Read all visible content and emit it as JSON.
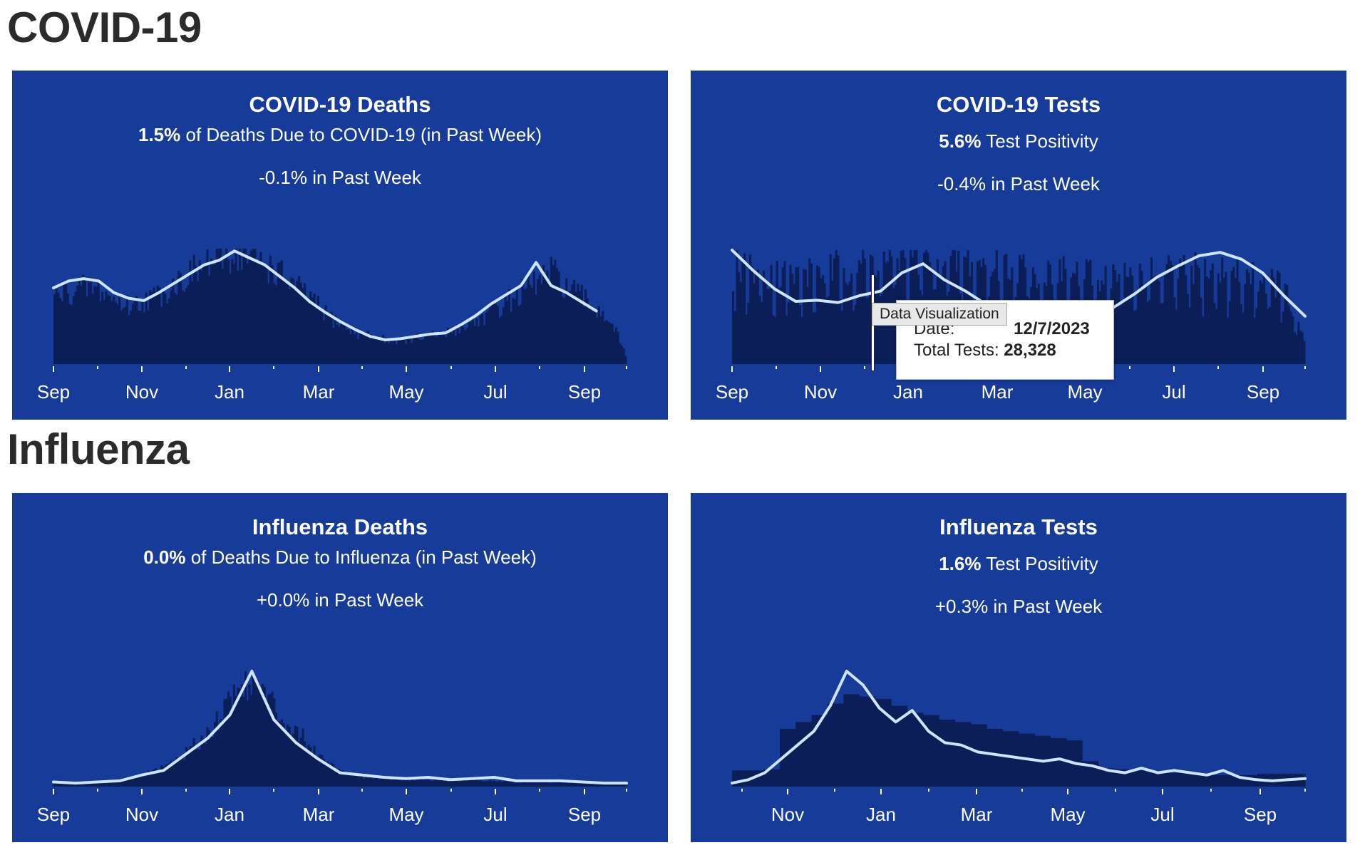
{
  "sections": {
    "covid": "COVID-19",
    "influenza": "Influenza"
  },
  "colors": {
    "panel_bg": "#173b99",
    "bar": "#0b1e57",
    "line": "#cfe4ff",
    "text": "#ffffff",
    "heading": "#2b2b2b"
  },
  "panels": {
    "covid_deaths": {
      "title": "COVID-19 Deaths",
      "metric_value": "1.5%",
      "metric_text": " of Deaths Due to COVID-19 (in Past Week)",
      "change": "-0.1% in Past Week"
    },
    "covid_tests": {
      "title": "COVID-19 Tests",
      "metric_value": "5.6%",
      "metric_text": " Test Positivity",
      "change": "-0.4% in Past Week",
      "tooltip": {
        "tag": "Data Visualization",
        "date_label": "Date:",
        "date_value": "12/7/2023",
        "tests_label": "Total Tests:",
        "tests_value": "28,328"
      }
    },
    "influenza_deaths": {
      "title": "Influenza Deaths",
      "metric_value": "0.0%",
      "metric_text": " of Deaths Due to Influenza (in Past Week)",
      "change": "+0.0% in Past Week"
    },
    "influenza_tests": {
      "title": "Influenza Tests",
      "metric_value": "1.6%",
      "metric_text": " Test Positivity",
      "change": "+0.3% in Past Week"
    }
  },
  "chart_data": [
    {
      "id": "covid_deaths",
      "type": "bar+line",
      "title": "COVID-19 Deaths",
      "x_ticks": [
        "Sep",
        "Nov",
        "Jan",
        "Mar",
        "May",
        "Jul",
        "Sep"
      ],
      "x_range_months": [
        0,
        13
      ],
      "y_range": [
        0,
        100
      ],
      "grid": false,
      "bar_daily": [
        [
          0,
          60
        ],
        [
          0.5,
          64
        ],
        [
          1,
          68
        ],
        [
          1.5,
          66
        ],
        [
          2,
          57
        ],
        [
          2.5,
          52
        ],
        [
          3,
          57
        ],
        [
          3.5,
          62
        ],
        [
          4,
          72
        ],
        [
          4.5,
          80
        ],
        [
          5,
          88
        ],
        [
          5.5,
          95
        ],
        [
          6,
          100
        ],
        [
          6.5,
          96
        ],
        [
          7,
          90
        ],
        [
          7.5,
          80
        ],
        [
          8,
          70
        ],
        [
          8.5,
          58
        ],
        [
          9,
          45
        ],
        [
          9.5,
          36
        ],
        [
          10,
          28
        ],
        [
          10.5,
          25
        ],
        [
          11,
          22
        ],
        [
          11.5,
          21
        ],
        [
          12,
          23
        ],
        [
          12.5,
          25
        ],
        [
          13,
          27
        ],
        [
          13.5,
          32
        ],
        [
          14,
          38
        ],
        [
          14.5,
          45
        ],
        [
          15,
          55
        ],
        [
          15.5,
          63
        ],
        [
          16,
          72
        ],
        [
          16.5,
          82
        ],
        [
          17,
          70
        ],
        [
          17.5,
          60
        ],
        [
          18,
          50
        ],
        [
          18.5,
          40
        ],
        [
          19,
          8
        ]
      ],
      "line_7day_avg": [
        [
          0,
          66
        ],
        [
          0.5,
          72
        ],
        [
          1,
          74
        ],
        [
          1.5,
          72
        ],
        [
          2,
          62
        ],
        [
          2.5,
          57
        ],
        [
          3,
          55
        ],
        [
          3.5,
          62
        ],
        [
          4,
          70
        ],
        [
          4.5,
          78
        ],
        [
          5,
          86
        ],
        [
          5.5,
          90
        ],
        [
          6,
          98
        ],
        [
          6.5,
          92
        ],
        [
          7,
          86
        ],
        [
          7.5,
          76
        ],
        [
          8,
          66
        ],
        [
          8.5,
          54
        ],
        [
          9,
          45
        ],
        [
          9.5,
          37
        ],
        [
          10,
          30
        ],
        [
          10.5,
          24
        ],
        [
          11,
          21
        ],
        [
          11.5,
          22
        ],
        [
          12,
          24
        ],
        [
          12.5,
          26
        ],
        [
          13,
          27
        ],
        [
          13.5,
          34
        ],
        [
          14,
          42
        ],
        [
          14.5,
          52
        ],
        [
          15,
          60
        ],
        [
          15.5,
          68
        ],
        [
          16,
          88
        ],
        [
          16.5,
          68
        ],
        [
          17,
          62
        ],
        [
          17.5,
          54
        ],
        [
          18,
          46
        ]
      ]
    },
    {
      "id": "covid_tests",
      "type": "bar+line",
      "title": "COVID-19 Tests",
      "x_ticks": [
        "Sep",
        "Nov",
        "Jan",
        "Mar",
        "May",
        "Jul",
        "Sep"
      ],
      "x_range_months": [
        0,
        13
      ],
      "y_range": [
        0,
        100
      ],
      "grid": false,
      "bar_daily": [
        [
          0,
          92
        ],
        [
          1,
          86
        ],
        [
          2,
          82
        ],
        [
          3,
          80
        ],
        [
          4,
          84
        ],
        [
          5,
          88
        ],
        [
          6,
          92
        ],
        [
          7,
          96
        ],
        [
          8,
          98
        ],
        [
          9,
          96
        ],
        [
          10,
          94
        ],
        [
          11,
          92
        ],
        [
          12,
          90
        ],
        [
          13,
          88
        ],
        [
          14,
          84
        ],
        [
          15,
          82
        ],
        [
          16,
          80
        ],
        [
          17,
          80
        ],
        [
          18,
          80
        ],
        [
          19,
          82
        ],
        [
          20,
          84
        ],
        [
          21,
          86
        ],
        [
          22,
          84
        ],
        [
          23,
          82
        ],
        [
          24,
          78
        ],
        [
          25,
          72
        ],
        [
          26,
          20
        ]
      ],
      "line_positivity": [
        [
          0,
          100
        ],
        [
          1,
          82
        ],
        [
          2,
          66
        ],
        [
          3,
          55
        ],
        [
          4,
          56
        ],
        [
          5,
          54
        ],
        [
          6,
          60
        ],
        [
          7,
          64
        ],
        [
          8,
          80
        ],
        [
          9,
          88
        ],
        [
          10,
          74
        ],
        [
          11,
          64
        ],
        [
          12,
          52
        ],
        [
          13,
          44
        ],
        [
          14,
          36
        ],
        [
          15,
          32
        ],
        [
          16,
          34
        ],
        [
          17,
          40
        ],
        [
          18,
          50
        ],
        [
          19,
          62
        ],
        [
          20,
          76
        ],
        [
          21,
          86
        ],
        [
          22,
          95
        ],
        [
          23,
          98
        ],
        [
          24,
          92
        ],
        [
          25,
          80
        ],
        [
          26,
          60
        ],
        [
          27,
          42
        ]
      ]
    },
    {
      "id": "influenza_deaths",
      "type": "bar+line",
      "title": "Influenza Deaths",
      "x_ticks": [
        "Sep",
        "Nov",
        "Jan",
        "Mar",
        "May",
        "Jul",
        "Sep"
      ],
      "x_range_months": [
        0,
        13
      ],
      "y_range": [
        0,
        100
      ],
      "grid": false,
      "bar_daily": [
        [
          0,
          3
        ],
        [
          1,
          4
        ],
        [
          2,
          5
        ],
        [
          3,
          6
        ],
        [
          4,
          10
        ],
        [
          5,
          18
        ],
        [
          6,
          30
        ],
        [
          7,
          48
        ],
        [
          8,
          78
        ],
        [
          9,
          100
        ],
        [
          10,
          70
        ],
        [
          11,
          50
        ],
        [
          12,
          28
        ],
        [
          13,
          14
        ],
        [
          14,
          9
        ],
        [
          15,
          7
        ],
        [
          16,
          6
        ],
        [
          17,
          6
        ],
        [
          18,
          5
        ],
        [
          19,
          6
        ],
        [
          20,
          5
        ],
        [
          21,
          4
        ],
        [
          22,
          4
        ],
        [
          23,
          4
        ],
        [
          24,
          4
        ],
        [
          25,
          3
        ],
        [
          26,
          2
        ]
      ],
      "line_7day_avg": [
        [
          0,
          4
        ],
        [
          1,
          3
        ],
        [
          2,
          4
        ],
        [
          3,
          5
        ],
        [
          4,
          10
        ],
        [
          5,
          14
        ],
        [
          6,
          28
        ],
        [
          7,
          42
        ],
        [
          8,
          62
        ],
        [
          9,
          100
        ],
        [
          10,
          58
        ],
        [
          11,
          38
        ],
        [
          12,
          24
        ],
        [
          13,
          12
        ],
        [
          14,
          10
        ],
        [
          15,
          8
        ],
        [
          16,
          7
        ],
        [
          17,
          8
        ],
        [
          18,
          6
        ],
        [
          19,
          7
        ],
        [
          20,
          8
        ],
        [
          21,
          5
        ],
        [
          22,
          5
        ],
        [
          23,
          5
        ],
        [
          24,
          4
        ],
        [
          25,
          3
        ],
        [
          26,
          3
        ]
      ]
    },
    {
      "id": "influenza_tests",
      "type": "bar+line",
      "title": "Influenza Tests",
      "x_ticks": [
        "Nov",
        "Jan",
        "Mar",
        "May",
        "Jul",
        "Sep"
      ],
      "x_range_months": [
        0,
        12
      ],
      "y_range": [
        0,
        100
      ],
      "grid": false,
      "bar_weekly": [
        [
          0,
          14
        ],
        [
          1,
          14
        ],
        [
          2,
          15
        ],
        [
          3,
          50
        ],
        [
          4,
          56
        ],
        [
          5,
          62
        ],
        [
          6,
          72
        ],
        [
          7,
          80
        ],
        [
          8,
          78
        ],
        [
          9,
          76
        ],
        [
          10,
          70
        ],
        [
          11,
          64
        ],
        [
          12,
          62
        ],
        [
          13,
          58
        ],
        [
          14,
          56
        ],
        [
          15,
          54
        ],
        [
          16,
          50
        ],
        [
          17,
          48
        ],
        [
          18,
          46
        ],
        [
          19,
          44
        ],
        [
          20,
          42
        ],
        [
          21,
          40
        ],
        [
          22,
          22
        ],
        [
          23,
          16
        ],
        [
          24,
          15
        ],
        [
          25,
          14
        ],
        [
          26,
          13
        ],
        [
          27,
          12
        ],
        [
          28,
          12
        ],
        [
          29,
          11
        ],
        [
          30,
          10
        ],
        [
          31,
          10
        ],
        [
          32,
          10
        ],
        [
          33,
          11
        ],
        [
          34,
          11
        ],
        [
          35,
          11
        ]
      ],
      "line_positivity": [
        [
          0,
          3
        ],
        [
          1,
          6
        ],
        [
          2,
          12
        ],
        [
          3,
          24
        ],
        [
          4,
          36
        ],
        [
          5,
          48
        ],
        [
          6,
          70
        ],
        [
          7,
          100
        ],
        [
          8,
          88
        ],
        [
          9,
          68
        ],
        [
          10,
          56
        ],
        [
          11,
          66
        ],
        [
          12,
          48
        ],
        [
          13,
          38
        ],
        [
          14,
          36
        ],
        [
          15,
          30
        ],
        [
          16,
          28
        ],
        [
          17,
          26
        ],
        [
          18,
          24
        ],
        [
          19,
          22
        ],
        [
          20,
          24
        ],
        [
          21,
          20
        ],
        [
          22,
          18
        ],
        [
          23,
          14
        ],
        [
          24,
          12
        ],
        [
          25,
          16
        ],
        [
          26,
          12
        ],
        [
          27,
          14
        ],
        [
          28,
          12
        ],
        [
          29,
          10
        ],
        [
          30,
          14
        ],
        [
          31,
          8
        ],
        [
          32,
          6
        ],
        [
          33,
          5
        ],
        [
          34,
          6
        ],
        [
          35,
          7
        ]
      ]
    }
  ]
}
